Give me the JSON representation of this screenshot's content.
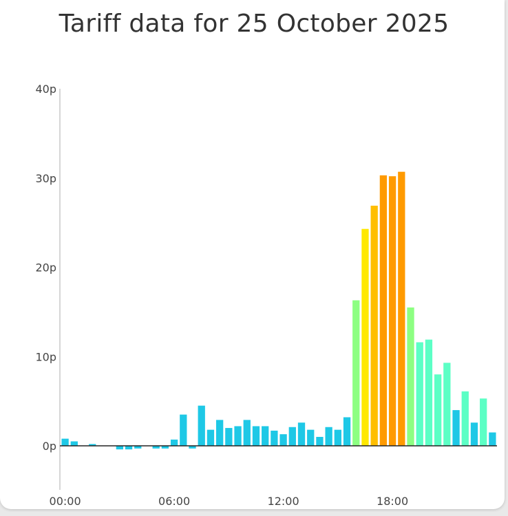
{
  "title": "Tariff data for 25 October 2025",
  "chart_data": {
    "type": "bar",
    "title": "Tariff data for 25 October 2025",
    "xlabel": "",
    "ylabel": "",
    "ylim": [
      -5,
      40
    ],
    "yticks": [
      {
        "value": 0,
        "label": "0p"
      },
      {
        "value": 10,
        "label": "10p"
      },
      {
        "value": 20,
        "label": "20p"
      },
      {
        "value": 30,
        "label": "30p"
      },
      {
        "value": 40,
        "label": "40p"
      }
    ],
    "xticks": [
      {
        "slot": 0,
        "label": "00:00"
      },
      {
        "slot": 12,
        "label": "06:00"
      },
      {
        "slot": 24,
        "label": "12:00"
      },
      {
        "slot": 36,
        "label": "18:00"
      }
    ],
    "slots_per_day": 48,
    "values": [
      0.8,
      0.5,
      0,
      0.2,
      0,
      0,
      -0.4,
      -0.4,
      -0.3,
      0,
      -0.3,
      -0.3,
      0.7,
      3.5,
      -0.3,
      4.5,
      1.8,
      2.9,
      2.0,
      2.2,
      2.9,
      2.2,
      2.2,
      1.7,
      1.3,
      2.1,
      2.6,
      1.8,
      1.0,
      2.1,
      1.8,
      3.2,
      16.3,
      24.3,
      26.9,
      30.3,
      30.2,
      30.7,
      15.5,
      11.6,
      11.9,
      8.0,
      9.3,
      4.0,
      6.1,
      2.6,
      5.3,
      1.5
    ],
    "colors": {
      "low": "#1ec8e6",
      "mid": "#5cffc5",
      "green": "#8dff82",
      "yellow": "#ffe800",
      "amber": "#ffbe00",
      "orange": "#ff9a00",
      "axis": "#222222",
      "yaxis": "#c8c8c8"
    }
  }
}
